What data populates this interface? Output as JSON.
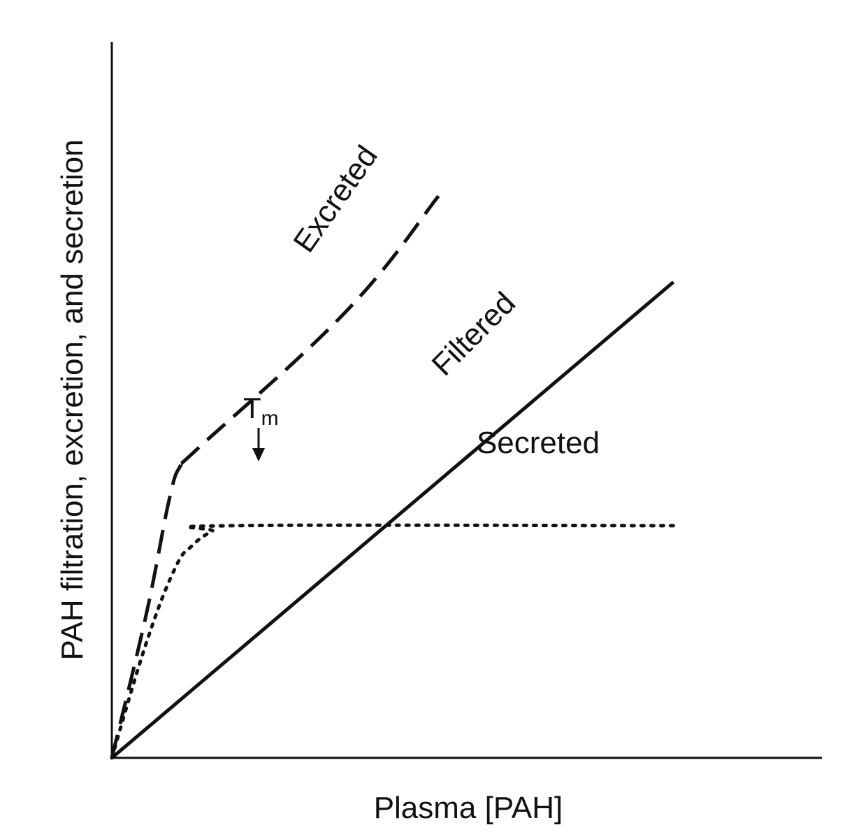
{
  "chart_data": {
    "type": "line",
    "title": "",
    "xlabel": "Plasma [PAH]",
    "ylabel": "PAH filtration, excretion, and secretion",
    "xlim": [
      0,
      10
    ],
    "ylim": [
      0,
      10
    ],
    "grid": false,
    "legend": "none",
    "series": [
      {
        "name": "Filtered",
        "style": "solid",
        "x": [
          0,
          9.8
        ],
        "y": [
          0,
          8.3
        ]
      },
      {
        "name": "Secreted",
        "style": "dotted",
        "x": [
          0,
          0.6,
          1.1,
          1.4,
          1.75,
          2.1,
          9.8
        ],
        "y": [
          0,
          2.0,
          3.3,
          3.7,
          3.95,
          4.05,
          4.05
        ]
      },
      {
        "name": "Excreted",
        "style": "dashed",
        "x": [
          0,
          0.6,
          1.0,
          1.2,
          1.45,
          4.1,
          5.7
        ],
        "y": [
          0,
          2.5,
          4.5,
          5.1,
          5.35,
          7.8,
          9.8
        ]
      }
    ],
    "annotations": [
      {
        "text_main": "T",
        "text_sub": "m",
        "x": 2.1,
        "y": 4.05
      }
    ]
  }
}
